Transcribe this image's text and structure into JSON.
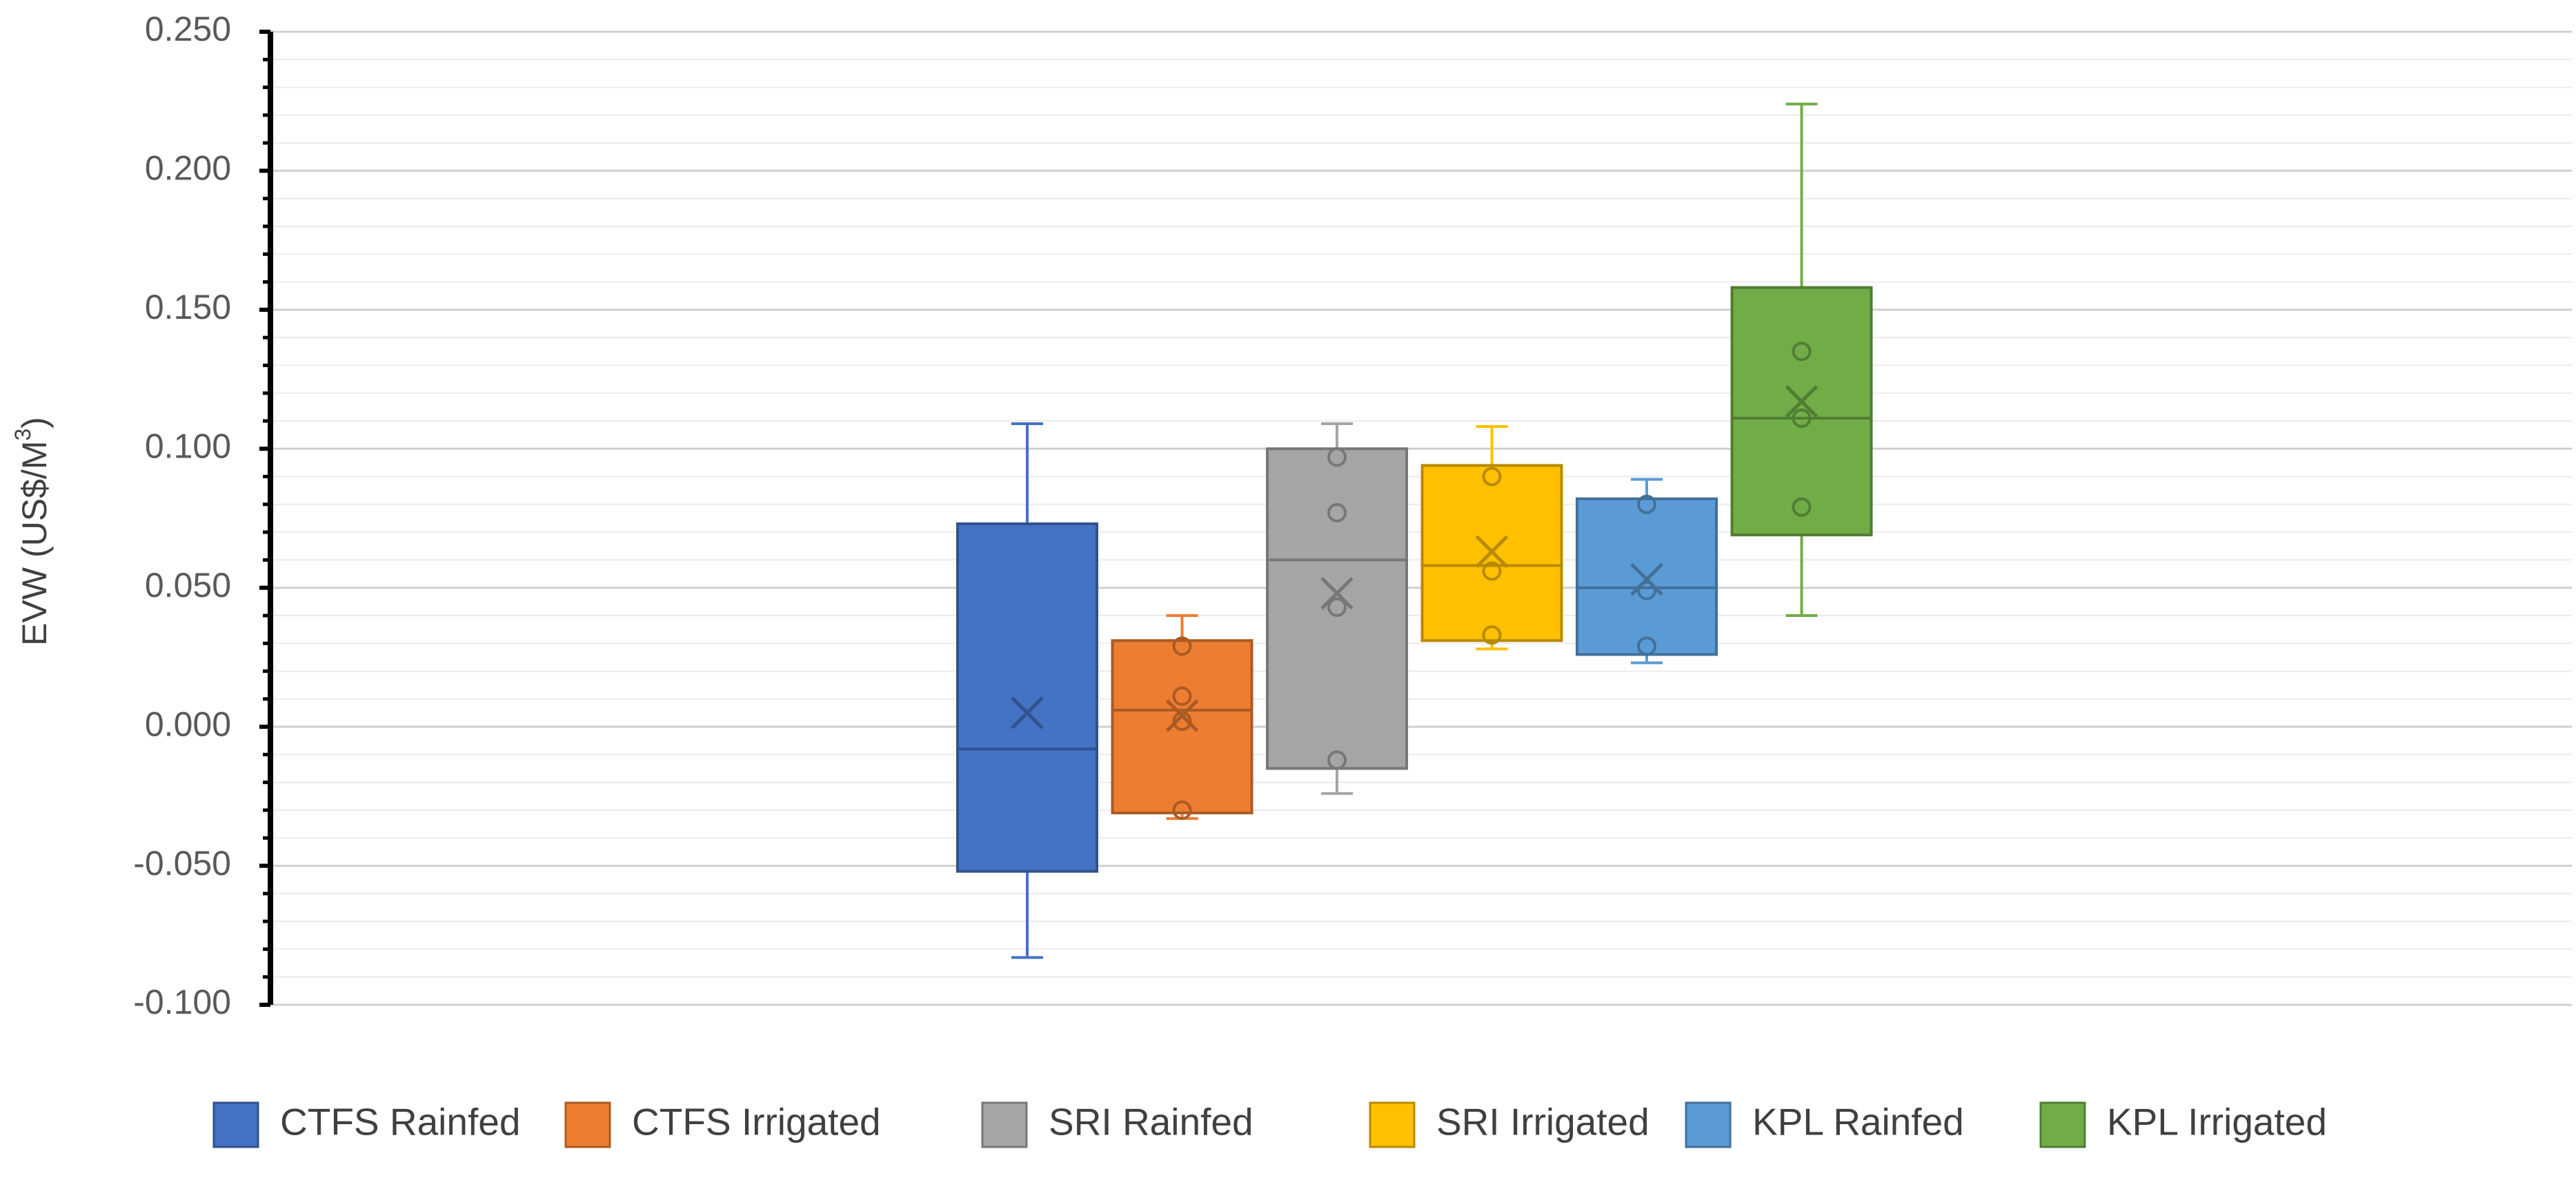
{
  "chart_data": {
    "type": "box",
    "title": "",
    "xlabel": "",
    "ylabel": "EVW (US$/M",
    "ylabel_superscript": "3",
    "ylabel_suffix": ")",
    "ylim": [
      -0.1,
      0.25
    ],
    "yticks": [
      "-0.100",
      "-0.050",
      "0.000",
      "0.050",
      "0.100",
      "0.150",
      "0.200",
      "0.250"
    ],
    "grid": "horizontal major and minor",
    "legend_position": "bottom",
    "series": [
      {
        "name": "CTFS Rainfed",
        "color": "#4472C4",
        "min": -0.083,
        "q1": -0.052,
        "median": -0.008,
        "q3": 0.073,
        "max": 0.109,
        "mean": 0.005,
        "points": []
      },
      {
        "name": "CTFS Irrigated",
        "color": "#ED7D31",
        "min": -0.033,
        "q1": -0.031,
        "median": 0.006,
        "q3": 0.031,
        "max": 0.04,
        "mean": 0.004,
        "points": [
          0.029,
          0.011,
          0.002,
          -0.03
        ]
      },
      {
        "name": "SRI Rainfed",
        "color": "#A5A5A5",
        "min": -0.024,
        "q1": -0.015,
        "median": 0.06,
        "q3": 0.1,
        "max": 0.109,
        "mean": 0.048,
        "points": [
          0.097,
          0.077,
          0.043,
          -0.012
        ]
      },
      {
        "name": "SRI Irrigated",
        "color": "#FFC000",
        "min": 0.028,
        "q1": 0.031,
        "median": 0.058,
        "q3": 0.094,
        "max": 0.108,
        "mean": 0.063,
        "points": [
          0.09,
          0.056,
          0.033
        ]
      },
      {
        "name": "KPL Rainfed",
        "color": "#5B9BD5",
        "min": 0.023,
        "q1": 0.026,
        "median": 0.05,
        "q3": 0.082,
        "max": 0.089,
        "mean": 0.053,
        "points": [
          0.08,
          0.049,
          0.029
        ]
      },
      {
        "name": "KPL Irrigated",
        "color": "#70AD47",
        "min": 0.04,
        "q1": 0.069,
        "median": 0.111,
        "q3": 0.158,
        "max": 0.224,
        "mean": 0.117,
        "points": [
          0.135,
          0.111,
          0.079
        ]
      }
    ]
  }
}
